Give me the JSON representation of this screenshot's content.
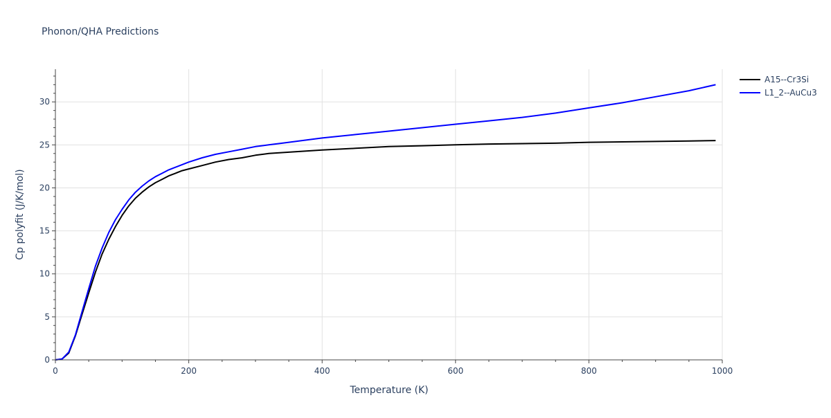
{
  "chart_data": {
    "type": "line",
    "title": "Phonon/QHA Predictions",
    "xlabel": "Temperature (K)",
    "ylabel": "Cp polyfit (J/K/mol)",
    "xlim": [
      0,
      1000
    ],
    "ylim": [
      0,
      33.8
    ],
    "x_ticks": [
      0,
      200,
      400,
      600,
      800,
      1000
    ],
    "y_ticks": [
      0,
      5,
      10,
      15,
      20,
      25,
      30
    ],
    "grid": true,
    "legend_position": "top-right",
    "series": [
      {
        "name": "A15--Cr3Si",
        "color": "#000000",
        "x": [
          0,
          10,
          20,
          30,
          40,
          50,
          60,
          70,
          80,
          90,
          100,
          110,
          120,
          130,
          140,
          150,
          160,
          170,
          180,
          190,
          200,
          220,
          240,
          260,
          280,
          300,
          320,
          340,
          360,
          380,
          400,
          450,
          500,
          550,
          600,
          650,
          700,
          750,
          800,
          850,
          900,
          950,
          990
        ],
        "y": [
          0,
          0.1,
          0.8,
          2.8,
          5.3,
          7.8,
          10.2,
          12.3,
          14.0,
          15.5,
          16.8,
          17.9,
          18.8,
          19.5,
          20.1,
          20.6,
          21.0,
          21.4,
          21.7,
          22.0,
          22.2,
          22.6,
          23.0,
          23.3,
          23.5,
          23.8,
          24.0,
          24.1,
          24.2,
          24.3,
          24.4,
          24.6,
          24.8,
          24.9,
          25.0,
          25.1,
          25.15,
          25.2,
          25.3,
          25.35,
          25.4,
          25.45,
          25.5
        ]
      },
      {
        "name": "L1_2--AuCu3",
        "color": "#0000ff",
        "x": [
          0,
          10,
          20,
          30,
          40,
          50,
          60,
          70,
          80,
          90,
          100,
          110,
          120,
          130,
          140,
          150,
          160,
          170,
          180,
          190,
          200,
          220,
          240,
          260,
          280,
          300,
          320,
          340,
          360,
          380,
          400,
          450,
          500,
          550,
          600,
          650,
          700,
          750,
          800,
          850,
          900,
          950,
          990
        ],
        "y": [
          0,
          0.1,
          0.9,
          2.9,
          5.6,
          8.3,
          10.9,
          13.0,
          14.8,
          16.3,
          17.5,
          18.6,
          19.5,
          20.2,
          20.8,
          21.3,
          21.7,
          22.1,
          22.4,
          22.7,
          23.0,
          23.5,
          23.9,
          24.2,
          24.5,
          24.8,
          25.0,
          25.2,
          25.4,
          25.6,
          25.8,
          26.2,
          26.6,
          27.0,
          27.4,
          27.8,
          28.2,
          28.7,
          29.3,
          29.9,
          30.6,
          31.3,
          32.0
        ]
      }
    ]
  }
}
